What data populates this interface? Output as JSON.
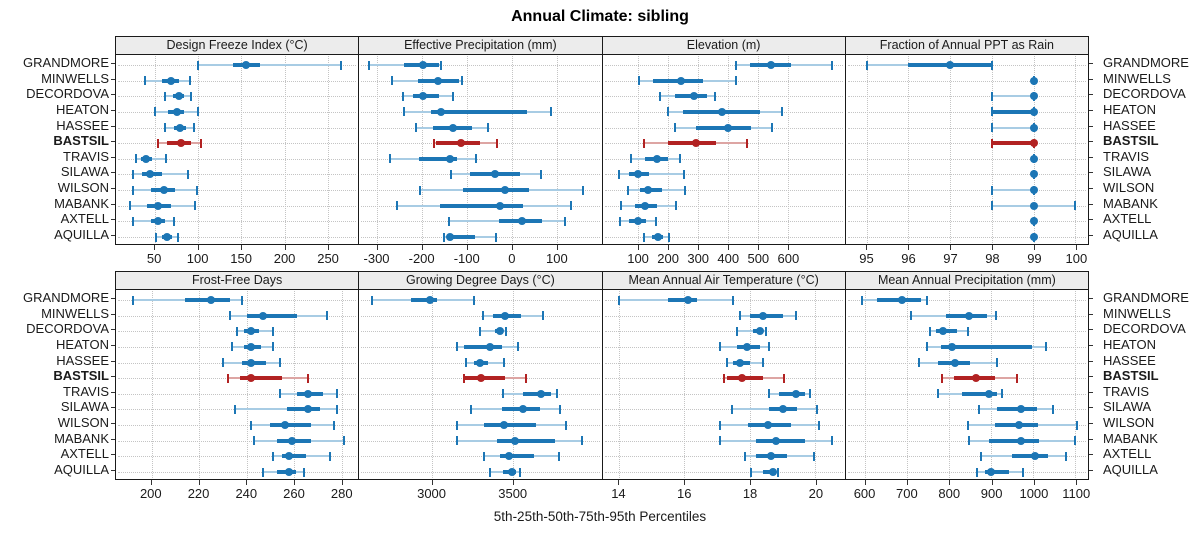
{
  "title": "Annual Climate: sibling",
  "caption": "5th-25th-50th-75th-95th Percentiles",
  "chart_data": {
    "type": "scatter",
    "subtype": "trellis-percentile-dotplot",
    "title": "Annual Climate: sibling",
    "caption": "5th-25th-50th-75th-95th Percentiles",
    "percentiles": [
      5,
      25,
      50,
      75,
      95
    ],
    "stations": [
      "GRANDMORE",
      "MINWELLS",
      "DECORDOVA",
      "HEATON",
      "HASSEE",
      "BASTSIL",
      "TRAVIS",
      "SILAWA",
      "WILSON",
      "MABANK",
      "AXTELL",
      "AQUILLA"
    ],
    "highlight_station": "BASTSIL",
    "colors": {
      "series": "#1c76b5",
      "series_light": "#a8cce4",
      "highlight": "#b22222",
      "highlight_light": "#dda5a3",
      "grid": "#c4c4c4",
      "panel_border": "#1a1a1a",
      "header_bg": "#ececec",
      "text": "#1a1a1a"
    },
    "layout": {
      "rows": 2,
      "cols": 4,
      "grid": "dotted",
      "legend": "none"
    },
    "panels": [
      {
        "title": "Design Freeze Index (°C)",
        "row": 0,
        "domain": [
          5,
          285
        ],
        "ticks": [
          50,
          100,
          150,
          200,
          250
        ],
        "values": [
          [
            100,
            140,
            155,
            172,
            265
          ],
          [
            38,
            58,
            68,
            78,
            90
          ],
          [
            62,
            71,
            78,
            84,
            92
          ],
          [
            50,
            65,
            75,
            84,
            100
          ],
          [
            62,
            72,
            79,
            86,
            95
          ],
          [
            54,
            64,
            80,
            92,
            103
          ],
          [
            28,
            34,
            40,
            47,
            63
          ],
          [
            25,
            35,
            44,
            58,
            88
          ],
          [
            25,
            45,
            60,
            73,
            99
          ],
          [
            21,
            41,
            54,
            68,
            96
          ],
          [
            25,
            45,
            54,
            62,
            72
          ],
          [
            51,
            58,
            64,
            70,
            77
          ]
        ]
      },
      {
        "title": "Effective Precipitation (mm)",
        "row": 0,
        "domain": [
          -340,
          200
        ],
        "ticks": [
          -300,
          -200,
          -100,
          0,
          100
        ],
        "values": [
          [
            -318,
            -240,
            -197,
            -162,
            -158
          ],
          [
            -267,
            -210,
            -165,
            -118,
            -110
          ],
          [
            -243,
            -220,
            -198,
            -162,
            -131
          ],
          [
            -240,
            -180,
            -158,
            35,
            88
          ],
          [
            -214,
            -175,
            -130,
            -88,
            -52
          ],
          [
            -174,
            -168,
            -114,
            -70,
            -32
          ],
          [
            -272,
            -206,
            -138,
            -122,
            -79
          ],
          [
            -135,
            -93,
            -37,
            18,
            66
          ],
          [
            -205,
            -108,
            -15,
            38,
            158
          ],
          [
            -256,
            -160,
            -27,
            26,
            132
          ],
          [
            -140,
            -29,
            22,
            68,
            118
          ],
          [
            -151,
            -145,
            -137,
            -82,
            -36
          ]
        ]
      },
      {
        "title": "Elevation (m)",
        "row": 0,
        "domain": [
          -20,
          790
        ],
        "ticks": [
          100,
          200,
          300,
          400,
          500,
          600
        ],
        "values": [
          [
            426,
            472,
            545,
            609,
            747
          ],
          [
            103,
            150,
            242,
            317,
            426
          ],
          [
            172,
            222,
            287,
            328,
            356
          ],
          [
            200,
            248,
            381,
            506,
            581
          ],
          [
            222,
            294,
            398,
            478,
            548
          ],
          [
            120,
            200,
            291,
            361,
            464
          ],
          [
            76,
            122,
            161,
            200,
            239
          ],
          [
            36,
            70,
            98,
            137,
            253
          ],
          [
            64,
            106,
            133,
            178,
            256
          ],
          [
            42,
            89,
            122,
            161,
            226
          ],
          [
            37,
            67,
            100,
            126,
            159
          ],
          [
            120,
            144,
            167,
            183,
            203
          ]
        ]
      },
      {
        "title": "Fraction of Annual PPT as Rain",
        "row": 0,
        "domain": [
          94.5,
          100.3
        ],
        "ticks": [
          95,
          96,
          97,
          98,
          99,
          100
        ],
        "values": [
          [
            95,
            96,
            97,
            98,
            98
          ],
          [
            99,
            99,
            99,
            99,
            99
          ],
          [
            98,
            99,
            99,
            99,
            99
          ],
          [
            98,
            98,
            99,
            99,
            99
          ],
          [
            98,
            99,
            99,
            99,
            99
          ],
          [
            98,
            98,
            99,
            99,
            99
          ],
          [
            99,
            99,
            99,
            99,
            99
          ],
          [
            99,
            99,
            99,
            99,
            99
          ],
          [
            98,
            99,
            99,
            99,
            99
          ],
          [
            98,
            99,
            99,
            99,
            100
          ],
          [
            99,
            99,
            99,
            99,
            99
          ],
          [
            99,
            99,
            99,
            99,
            99
          ]
        ]
      },
      {
        "title": "Frost-Free Days",
        "row": 1,
        "domain": [
          185,
          287
        ],
        "ticks": [
          200,
          220,
          240,
          260,
          280
        ],
        "values": [
          [
            192,
            214,
            225,
            233,
            238
          ],
          [
            233,
            240,
            247,
            261,
            274
          ],
          [
            236,
            239,
            242,
            245,
            251
          ],
          [
            234,
            239,
            242,
            246,
            251
          ],
          [
            230,
            238,
            242,
            248,
            254
          ],
          [
            232,
            237,
            242,
            255,
            266
          ],
          [
            254,
            261,
            266,
            272,
            278
          ],
          [
            235,
            257,
            266,
            271,
            278
          ],
          [
            242,
            250,
            256,
            267,
            277
          ],
          [
            243,
            253,
            259,
            267,
            281
          ],
          [
            251,
            255,
            258,
            265,
            275
          ],
          [
            247,
            253,
            258,
            261,
            264
          ]
        ]
      },
      {
        "title": "Growing Degree Days (°C)",
        "row": 1,
        "domain": [
          2550,
          4050
        ],
        "ticks": [
          3000,
          3500
        ],
        "values": [
          [
            2630,
            2870,
            2985,
            3030,
            3260
          ],
          [
            3315,
            3380,
            3455,
            3550,
            3685
          ],
          [
            3300,
            3390,
            3422,
            3440,
            3460
          ],
          [
            3153,
            3198,
            3357,
            3432,
            3530
          ],
          [
            3208,
            3260,
            3300,
            3350,
            3449
          ],
          [
            3198,
            3204,
            3304,
            3453,
            3580
          ],
          [
            3440,
            3565,
            3673,
            3739,
            3775
          ],
          [
            3240,
            3433,
            3561,
            3667,
            3796
          ],
          [
            3153,
            3320,
            3449,
            3647,
            3830
          ],
          [
            3157,
            3402,
            3514,
            3765,
            3930
          ],
          [
            3320,
            3422,
            3480,
            3633,
            3786
          ],
          [
            3360,
            3440,
            3498,
            3520,
            3545
          ]
        ]
      },
      {
        "title": "Mean Annual Air Temperature (°C)",
        "row": 1,
        "domain": [
          13.5,
          20.9
        ],
        "ticks": [
          14,
          16,
          18,
          20
        ],
        "values": [
          [
            14.0,
            15.5,
            16.1,
            16.4,
            17.5
          ],
          [
            17.7,
            18.0,
            18.4,
            19.0,
            19.4
          ],
          [
            17.6,
            18.1,
            18.3,
            18.4,
            18.5
          ],
          [
            17.1,
            17.6,
            17.9,
            18.3,
            18.6
          ],
          [
            17.3,
            17.5,
            17.7,
            18.0,
            18.4
          ],
          [
            17.2,
            17.3,
            17.75,
            18.4,
            19.05
          ],
          [
            18.6,
            18.9,
            19.4,
            19.7,
            19.85
          ],
          [
            17.45,
            18.6,
            19.0,
            19.45,
            20.05
          ],
          [
            17.1,
            17.95,
            18.55,
            19.25,
            20.1
          ],
          [
            17.1,
            18.2,
            18.8,
            19.7,
            20.5
          ],
          [
            17.85,
            18.2,
            18.65,
            19.15,
            19.95
          ],
          [
            18.05,
            18.4,
            18.7,
            18.8,
            18.85
          ]
        ]
      },
      {
        "title": "Mean Annual Precipitation (mm)",
        "row": 1,
        "domain": [
          555,
          1130
        ],
        "ticks": [
          600,
          700,
          800,
          900,
          1000,
          1100
        ],
        "values": [
          [
            594,
            628,
            688,
            733,
            747
          ],
          [
            709,
            792,
            847,
            891,
            912
          ],
          [
            754,
            770,
            787,
            820,
            846
          ],
          [
            747,
            780,
            808,
            998,
            1031
          ],
          [
            730,
            775,
            814,
            850,
            913
          ],
          [
            784,
            812,
            863,
            909,
            962
          ],
          [
            775,
            830,
            895,
            915,
            927
          ],
          [
            871,
            915,
            972,
            1010,
            1047
          ],
          [
            846,
            909,
            966,
            1012,
            1103
          ],
          [
            847,
            895,
            971,
            1013,
            1100
          ],
          [
            877,
            950,
            1004,
            1036,
            1077
          ],
          [
            867,
            885,
            900,
            942,
            976
          ]
        ]
      }
    ]
  }
}
